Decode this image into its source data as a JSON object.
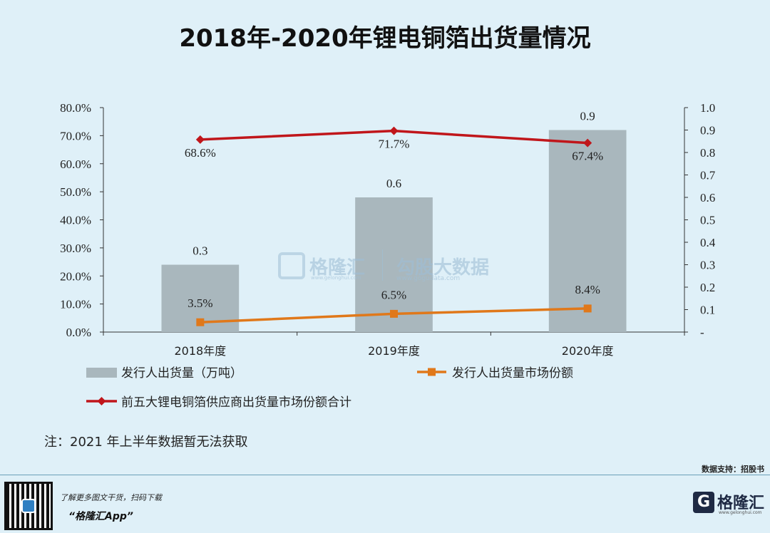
{
  "title": "2018年-2020年锂电铜箔出货量情况",
  "chart_data": {
    "type": "bar",
    "categories": [
      "2018年度",
      "2019年度",
      "2020年度"
    ],
    "bar_series": {
      "name": "发行人出货量（万吨）",
      "values": [
        0.3,
        0.6,
        0.9
      ],
      "labels": [
        "0.3",
        "0.6",
        "0.9"
      ],
      "axis": "right",
      "color": "#a9b7bd"
    },
    "line_series": [
      {
        "name": "前五大锂电铜箔供应商出货量市场份额合计",
        "values": [
          68.6,
          71.7,
          67.4
        ],
        "labels": [
          "68.6%",
          "71.7%",
          "67.4%"
        ],
        "axis": "left",
        "color": "#c0161b",
        "marker": "diamond"
      },
      {
        "name": "发行人出货量市场份额",
        "values": [
          3.5,
          6.5,
          8.4
        ],
        "labels": [
          "3.5%",
          "6.5%",
          "8.4%"
        ],
        "axis": "left",
        "color": "#e0781a",
        "marker": "square"
      }
    ],
    "left_axis": {
      "ylim": [
        0,
        80
      ],
      "ticks": [
        "0.0%",
        "10.0%",
        "20.0%",
        "30.0%",
        "40.0%",
        "50.0%",
        "60.0%",
        "70.0%",
        "80.0%"
      ]
    },
    "right_axis": {
      "ylim": [
        0,
        1.0
      ],
      "ticks": [
        "-",
        "0.1",
        "0.2",
        "0.3",
        "0.4",
        "0.5",
        "0.6",
        "0.7",
        "0.8",
        "0.9",
        "1.0"
      ]
    },
    "grid": false,
    "legend": "bottom"
  },
  "note": "注：2021 年上半年数据暂无法获取",
  "source": "数据支持：招股书",
  "watermark": {
    "brand": "格隆汇",
    "brand_sub": "www.gelonghui.com",
    "partner": "勾股大数据",
    "partner_sub": "www.gogudata.com"
  },
  "footer": {
    "promo_line": "了解更多图文干货，扫码下载",
    "app_name": "“格隆汇App”",
    "logo_char": "G",
    "logo_text": "格隆汇",
    "logo_sub": "www.gelonghui.com"
  }
}
